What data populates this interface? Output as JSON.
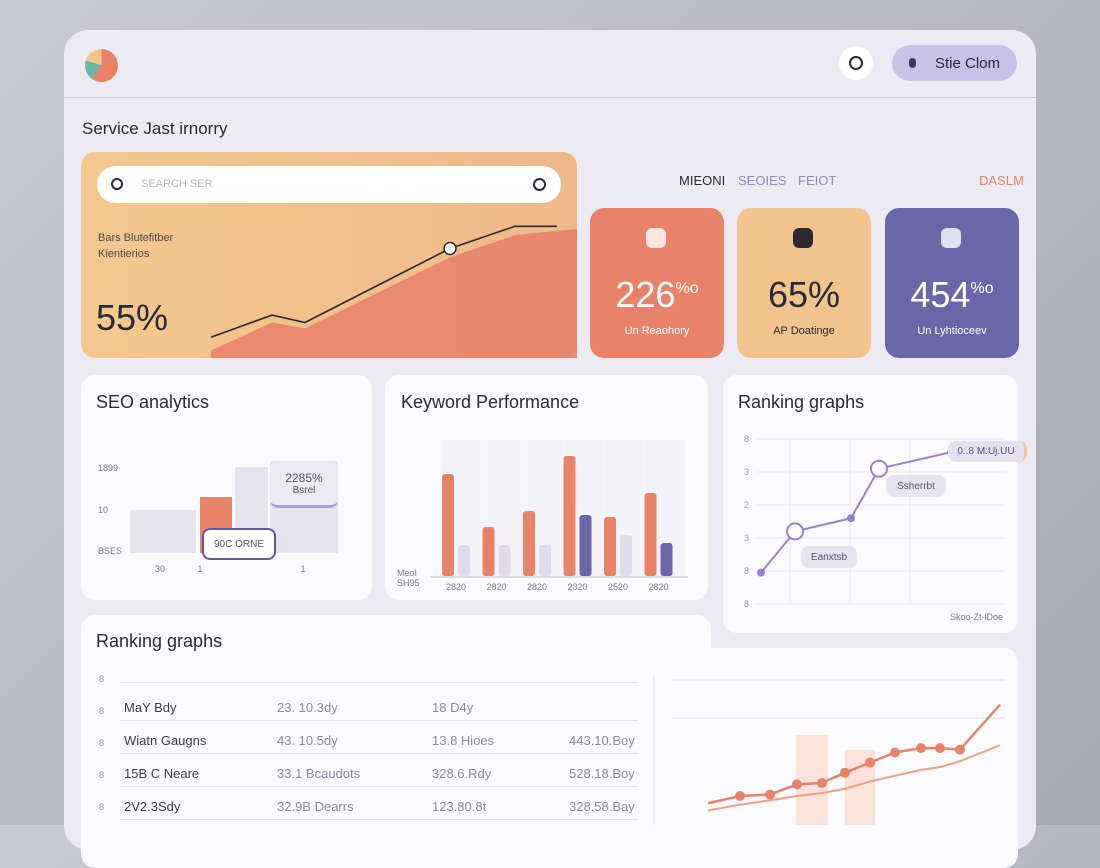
{
  "header": {
    "user_name": "Stie Clom"
  },
  "page_title": "Service Jast irnorry",
  "hero": {
    "search_placeholder": "SEARCH SER",
    "subtitle_lines": [
      "Bars Blutefitber",
      "Kientierios"
    ],
    "value": "55%",
    "chart": {
      "type": "area",
      "x": [
        0,
        61,
        94,
        239,
        304,
        346,
        366
      ],
      "xlim": [
        0,
        366
      ],
      "ylim": [
        0,
        100
      ],
      "line": [
        14,
        29,
        24,
        74,
        89,
        89,
        null
      ],
      "area": [
        5,
        24,
        20,
        68,
        83,
        86,
        87
      ],
      "line_color": "#2b2a33",
      "area_color": "#e8836a"
    }
  },
  "tabs": [
    "MIEONI",
    "SEOIES",
    "FEIOT"
  ],
  "tab_right": "DASLM",
  "stats": [
    {
      "value": "226",
      "unit": "%o",
      "label": "Un Reaohory",
      "color": "#e8836a"
    },
    {
      "value": "65%",
      "label": "AP Doatinge",
      "color": "#f2c48d"
    },
    {
      "value": "454",
      "unit": "%o",
      "label": "Un Lyhtioceev",
      "color": "#6b66a8"
    }
  ],
  "seo": {
    "title": "SEO analytics",
    "y_labels": [
      "1899",
      "10",
      "BSES"
    ],
    "x_labels": [
      "30",
      "1",
      "1"
    ],
    "chart": {
      "type": "bar",
      "values": [
        43,
        56,
        86,
        92
      ],
      "colors": [
        "#e5e4ee",
        "#e8836a",
        "#e5e4ee",
        "#e5e4ee"
      ],
      "ylim": [
        0,
        100
      ]
    },
    "tooltip": [
      "2285%",
      "Bsrel"
    ],
    "tag": "90C ORNE"
  },
  "keyword": {
    "title": "Keyword Performance",
    "axis_label": [
      "MeoI",
      "SH95"
    ],
    "chart": {
      "type": "bar",
      "categories": [
        "2820",
        "2820",
        "2820",
        "2320",
        "2520",
        "2820"
      ],
      "ylim": [
        0,
        130
      ],
      "series": [
        {
          "color": "#e8836a",
          "values": [
            102,
            49,
            65,
            120,
            59,
            83
          ]
        },
        {
          "color": "#dedde8",
          "values": [
            31,
            31,
            31,
            null,
            41,
            null
          ]
        },
        {
          "color": "#6b66a8",
          "values": [
            null,
            null,
            null,
            61,
            null,
            33
          ]
        }
      ]
    }
  },
  "ranking": {
    "title": "Ranking graphs",
    "y_labels": [
      "8",
      "3",
      "2",
      "3",
      "8",
      "8"
    ],
    "x_label": "Skoo-Zt-lDoe",
    "chart": {
      "type": "line",
      "x": [
        0,
        34,
        90,
        118,
        190
      ],
      "xlim": [
        -17,
        249
      ],
      "ylim": [
        0,
        100
      ],
      "values": [
        19,
        44,
        52,
        82,
        92
      ],
      "color": "#9b7fd0"
    },
    "tooltips": [
      "Ssherrbt",
      "Eanxtsb",
      "0..8 M:Uj.UU"
    ]
  },
  "bottom": {
    "title": "Ranking graphs",
    "row_markers": [
      "8",
      "8",
      "8",
      "8",
      "8"
    ],
    "table": {
      "rows": [
        [
          "MaY Bdy",
          "23. 10.3dy",
          "18 D4y"
        ],
        [
          "Wiatn Gaugns",
          "43. 10.5dy",
          "13.8 Hioes",
          "443.10.Boy"
        ],
        [
          "15B C Neare",
          "33.1 Bcaudots",
          "328.6.Rdy",
          "528.18.Boy"
        ],
        [
          "2V2.3Sdy",
          "32.9B Dearrs",
          "123.80.8t",
          "328.58.Bay"
        ]
      ]
    },
    "chart": {
      "type": "line",
      "x": [
        0,
        32,
        62,
        89,
        114,
        137,
        162,
        187,
        213,
        232,
        252,
        292
      ],
      "xlim": [
        -36,
        297
      ],
      "ylim": [
        0,
        100
      ],
      "series": [
        {
          "color": "#e8836a",
          "values": [
            15,
            20,
            21,
            28,
            29,
            36,
            43,
            50,
            53,
            53,
            52,
            83
          ]
        },
        {
          "color": "#ef9f86",
          "values": [
            10,
            14,
            17,
            20,
            22,
            25,
            30,
            34,
            38,
            40,
            44,
            55
          ]
        }
      ]
    }
  }
}
